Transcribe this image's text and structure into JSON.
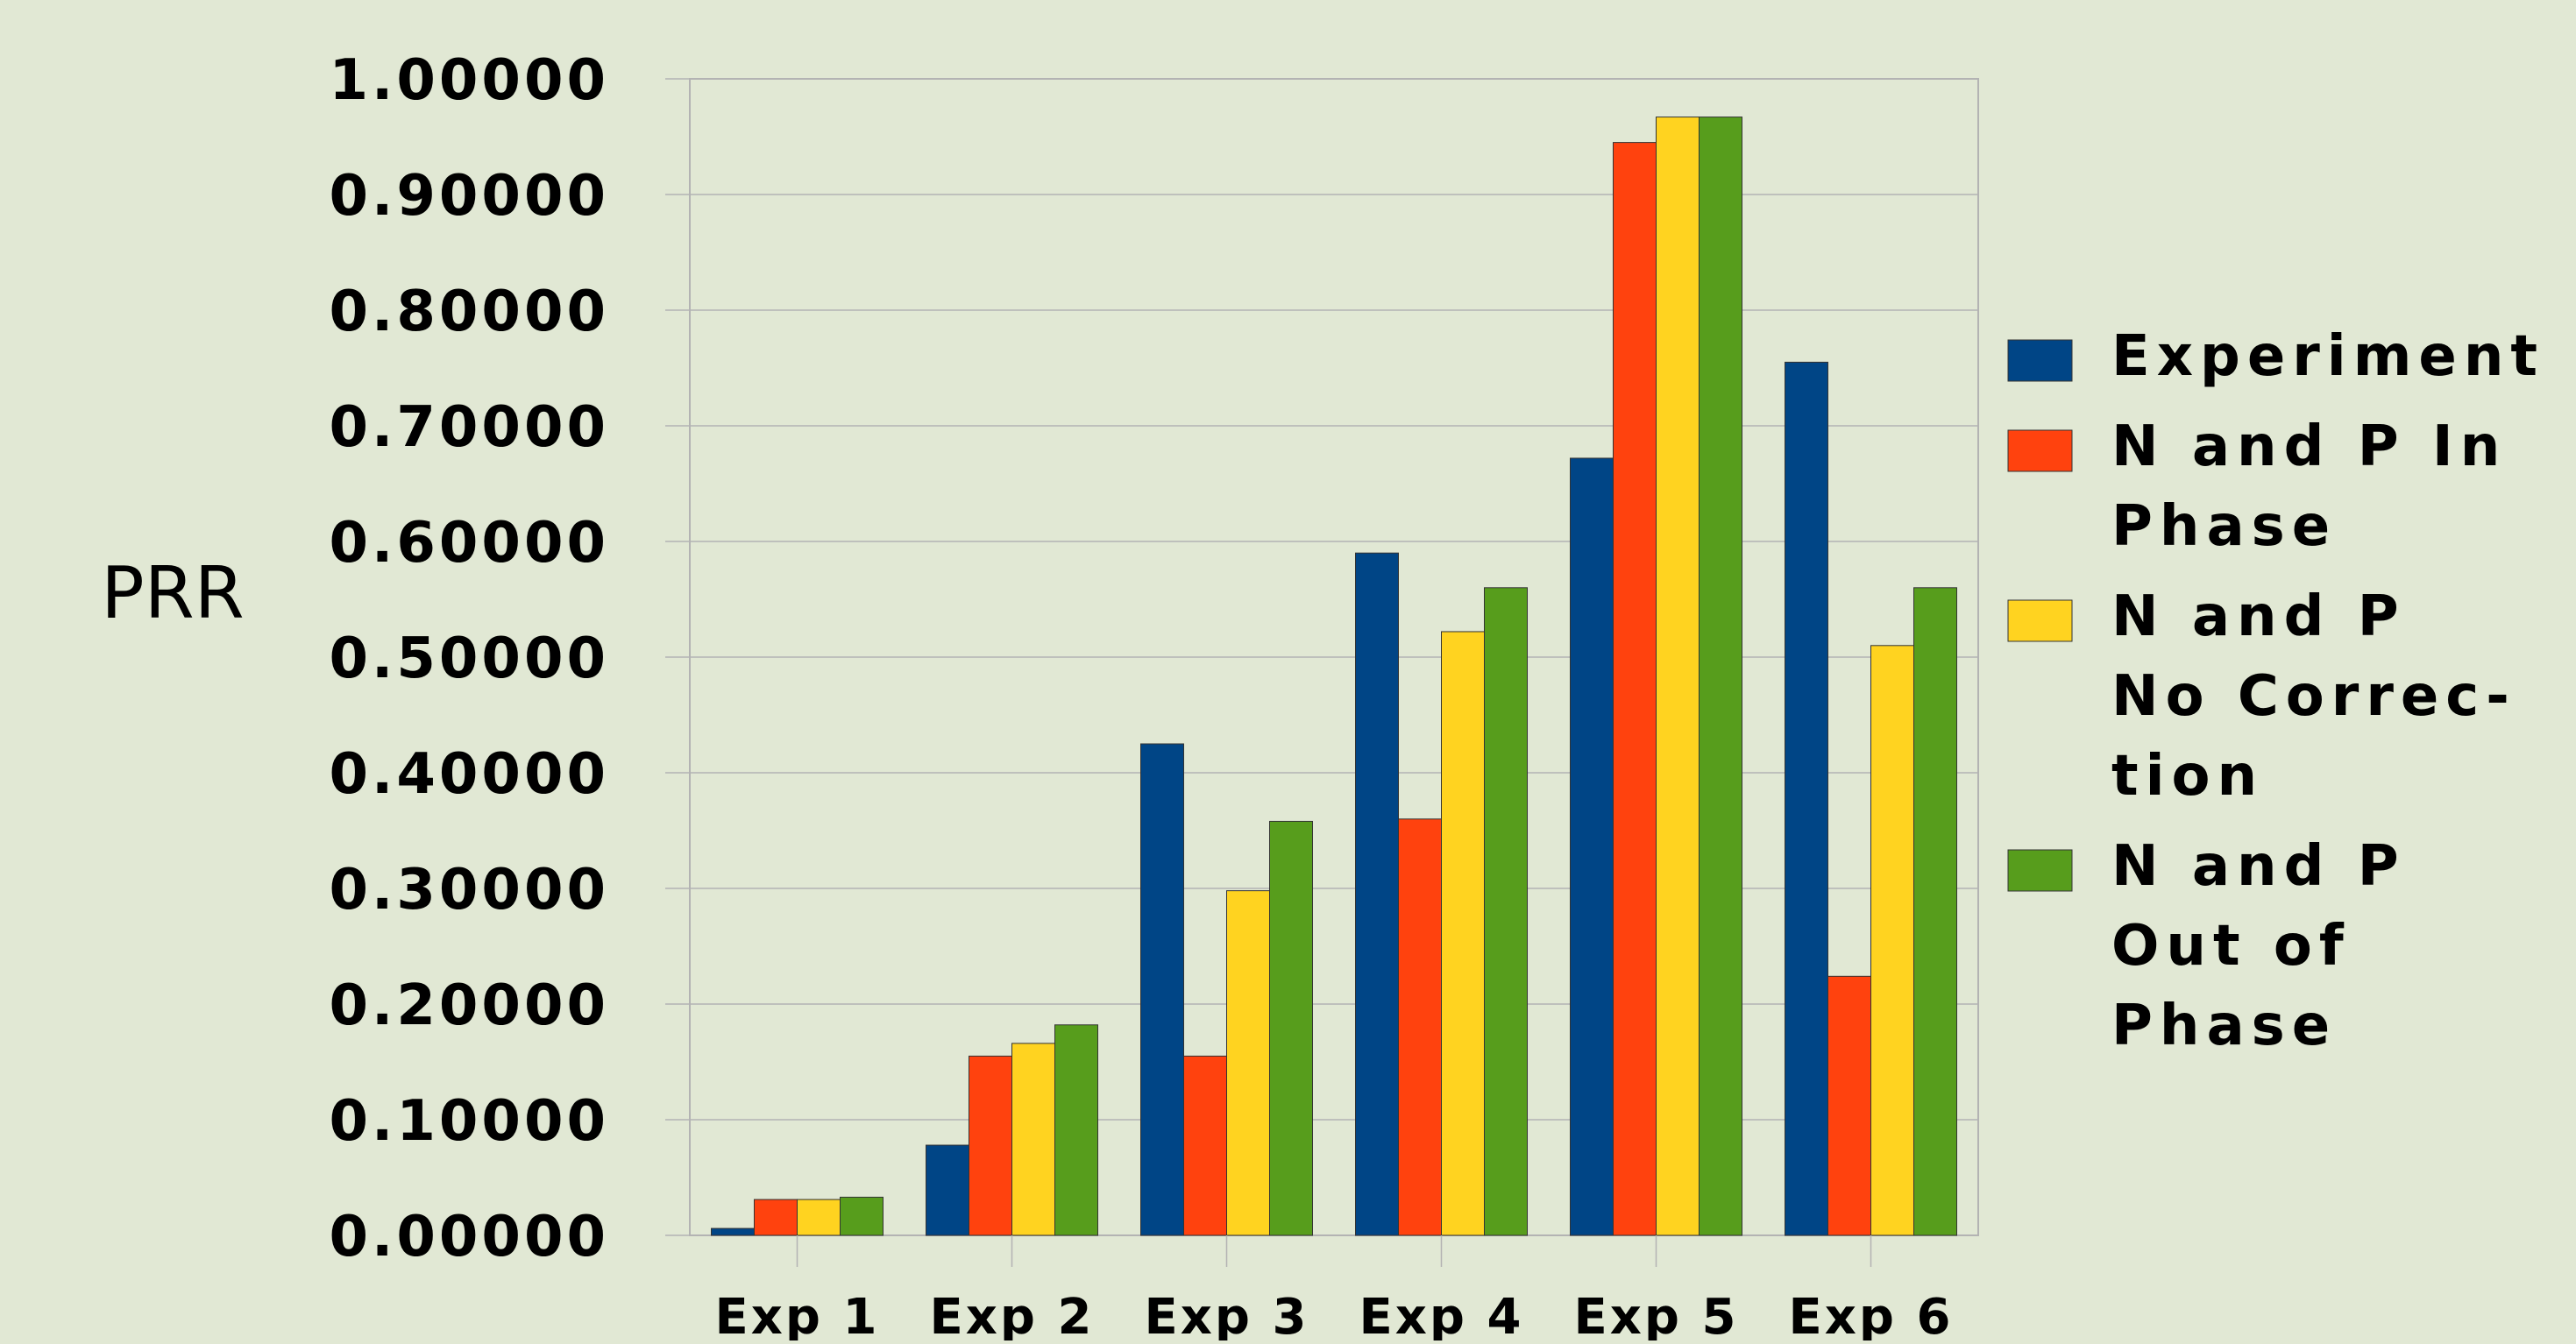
{
  "chart_data": {
    "type": "bar",
    "ylabel": "PRR",
    "xlabel": "",
    "categories": [
      "Exp 1",
      "Exp 2",
      "Exp 3",
      "Exp 4",
      "Exp 5",
      "Exp 6"
    ],
    "yticks": [
      "0.00000",
      "0.10000",
      "0.20000",
      "0.30000",
      "0.40000",
      "0.50000",
      "0.60000",
      "0.70000",
      "0.80000",
      "0.90000",
      "1.00000"
    ],
    "ylim": [
      0,
      1
    ],
    "grid": true,
    "legend_position": "right",
    "series": [
      {
        "name": "Experiment",
        "legend_lines": [
          "Experiment"
        ],
        "color": "#004586",
        "values": [
          0.006,
          0.078,
          0.425,
          0.59,
          0.672,
          0.755
        ]
      },
      {
        "name": "N and P In Phase",
        "legend_lines": [
          "N and P In",
          "Phase"
        ],
        "color": "#ff420e",
        "values": [
          0.031,
          0.155,
          0.155,
          0.36,
          0.945,
          0.224
        ]
      },
      {
        "name": "N and P No Correction",
        "legend_lines": [
          "N and P",
          "No Correc-",
          "tion"
        ],
        "color": "#ffd320",
        "values": [
          0.031,
          0.166,
          0.298,
          0.522,
          0.967,
          0.51
        ]
      },
      {
        "name": "N and P Out of Phase",
        "legend_lines": [
          "N and P",
          "Out of",
          "Phase"
        ],
        "color": "#579d1c",
        "values": [
          0.033,
          0.182,
          0.358,
          0.56,
          0.967,
          0.56
        ]
      }
    ]
  }
}
